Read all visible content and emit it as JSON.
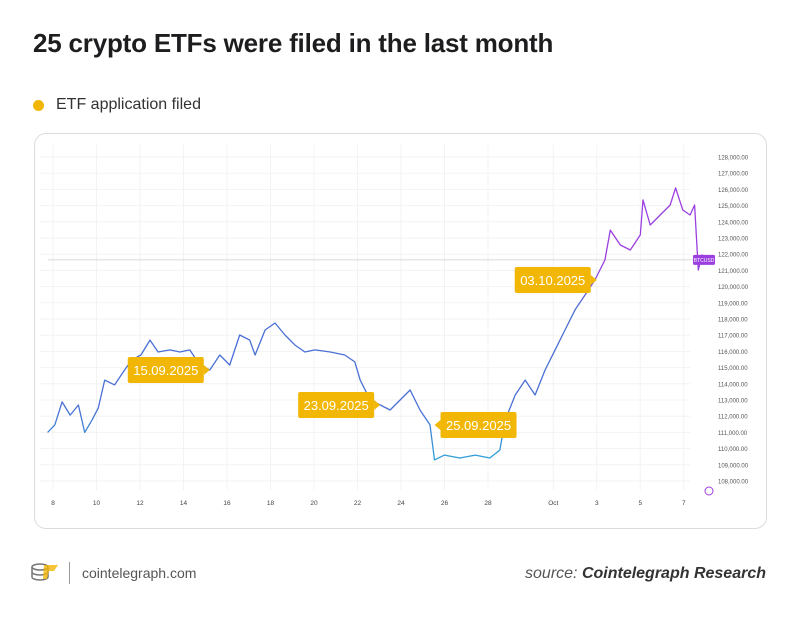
{
  "header": {
    "title": "25 crypto ETFs were filed in the last month"
  },
  "legend": {
    "label": "ETF application filed",
    "color": "#f2b705"
  },
  "footer": {
    "site": "cointelegraph.com",
    "source_prefix": "source:",
    "source_name": "Cointelegraph Research"
  },
  "chart_data": {
    "type": "line",
    "title": "25 crypto ETFs were filed in the last month",
    "symbol": "BTCUSD",
    "ylim": [
      108000,
      128000
    ],
    "y_ticks": [
      "128,000.00",
      "127,000.00",
      "126,000.00",
      "125,000.00",
      "124,000.00",
      "123,000.00",
      "122,000.00",
      "121,000.00",
      "120,000.00",
      "119,000.00",
      "118,000.00",
      "117,000.00",
      "116,000.00",
      "115,000.00",
      "114,000.00",
      "113,000.00",
      "112,000.00",
      "111,000.00",
      "110,000.00",
      "109,000.00",
      "108,000.00"
    ],
    "x_ticks": [
      {
        "label": "8",
        "date": "2025-09-08"
      },
      {
        "label": "10",
        "date": "2025-09-10"
      },
      {
        "label": "12",
        "date": "2025-09-12"
      },
      {
        "label": "14",
        "date": "2025-09-14"
      },
      {
        "label": "16",
        "date": "2025-09-16"
      },
      {
        "label": "18",
        "date": "2025-09-18"
      },
      {
        "label": "20",
        "date": "2025-09-20"
      },
      {
        "label": "22",
        "date": "2025-09-22"
      },
      {
        "label": "24",
        "date": "2025-09-24"
      },
      {
        "label": "26",
        "date": "2025-09-26"
      },
      {
        "label": "28",
        "date": "2025-09-28"
      },
      {
        "label": "Oct",
        "date": "2025-10-01"
      },
      {
        "label": "3",
        "date": "2025-10-03"
      },
      {
        "label": "5",
        "date": "2025-10-05"
      },
      {
        "label": "7",
        "date": "2025-10-07"
      }
    ],
    "grid": true,
    "current_price": 121650,
    "series": [
      {
        "points": [
          [
            "2025-09-07T18:00",
            111000
          ],
          [
            "2025-09-08T02:00",
            111460
          ],
          [
            "2025-09-08T10:00",
            112880
          ],
          [
            "2025-09-08T19:00",
            112070
          ],
          [
            "2025-09-09T04:00",
            112690
          ],
          [
            "2025-09-09T11:00",
            111000
          ],
          [
            "2025-09-09T19:00",
            111760
          ],
          [
            "2025-09-10T02:00",
            112510
          ],
          [
            "2025-09-10T09:00",
            114230
          ],
          [
            "2025-09-10T20:00",
            113930
          ],
          [
            "2025-09-11T07:00",
            114850
          ],
          [
            "2025-09-11T15:00",
            115470
          ],
          [
            "2025-09-12T01:00",
            115780
          ],
          [
            "2025-09-12T11:00",
            116700
          ],
          [
            "2025-09-12T20:00",
            115960
          ],
          [
            "2025-09-13T09:00",
            116090
          ],
          [
            "2025-09-13T20:00",
            115960
          ],
          [
            "2025-09-14T07:00",
            116090
          ],
          [
            "2025-09-14T18:00",
            115160
          ],
          [
            "2025-09-15T05:00",
            114850
          ],
          [
            "2025-09-15T16:00",
            115780
          ],
          [
            "2025-09-16T03:00",
            115160
          ],
          [
            "2025-09-16T14:00",
            117010
          ],
          [
            "2025-09-17T01:00",
            116700
          ],
          [
            "2025-09-17T07:00",
            115780
          ],
          [
            "2025-09-17T18:00",
            117320
          ],
          [
            "2025-09-18T05:00",
            117750
          ],
          [
            "2025-09-18T16:00",
            117010
          ],
          [
            "2025-09-19T03:00",
            116390
          ],
          [
            "2025-09-19T14:00",
            115960
          ],
          [
            "2025-09-20T01:00",
            116090
          ],
          [
            "2025-09-20T18:00",
            115960
          ],
          [
            "2025-09-21T10:00",
            115780
          ],
          [
            "2025-09-21T21:00",
            115350
          ],
          [
            "2025-09-22T03:00",
            114230
          ],
          [
            "2025-09-22T14:00",
            113000
          ],
          [
            "2025-09-23T01:00",
            112690
          ],
          [
            "2025-09-23T12:00",
            112380
          ],
          [
            "2025-09-23T23:00",
            113000
          ],
          [
            "2025-09-24T10:00",
            113620
          ],
          [
            "2025-09-24T21:00",
            112380
          ],
          [
            "2025-09-25T08:00",
            111460
          ],
          [
            "2025-09-25T13:00",
            109300
          ],
          [
            "2025-09-26T00:00",
            109600
          ],
          [
            "2025-09-26T17:00",
            109420
          ],
          [
            "2025-09-27T10:00",
            109600
          ],
          [
            "2025-09-28T02:00",
            109420
          ],
          [
            "2025-09-28T13:00",
            109910
          ],
          [
            "2025-09-28T19:00",
            111760
          ],
          [
            "2025-09-29T06:00",
            113310
          ],
          [
            "2025-09-29T17:00",
            114230
          ],
          [
            "2025-09-30T04:00",
            113310
          ],
          [
            "2025-09-30T15:00",
            114850
          ],
          [
            "2025-10-01T02:00",
            116090
          ],
          [
            "2025-10-01T13:00",
            117320
          ],
          [
            "2025-10-02T00:00",
            118560
          ],
          [
            "2025-10-02T11:00",
            119480
          ],
          [
            "2025-10-02T22:00",
            120410
          ],
          [
            "2025-10-03T09:00",
            121640
          ],
          [
            "2025-10-03T15:00",
            123490
          ],
          [
            "2025-10-04T02:00",
            122570
          ],
          [
            "2025-10-04T13:00",
            122260
          ],
          [
            "2025-10-05T00:00",
            123190
          ],
          [
            "2025-10-05T03:00",
            125350
          ],
          [
            "2025-10-05T11:00",
            123800
          ],
          [
            "2025-10-05T22:00",
            124420
          ],
          [
            "2025-10-06T09:00",
            125040
          ],
          [
            "2025-10-06T15:00",
            126090
          ],
          [
            "2025-10-06T23:00",
            124730
          ],
          [
            "2025-10-07T07:00",
            124420
          ],
          [
            "2025-10-07T12:00",
            125040
          ],
          [
            "2025-10-07T16:00",
            121020
          ],
          [
            "2025-10-07T20:00",
            121950
          ],
          [
            "2025-10-08T03:00",
            121760
          ]
        ]
      }
    ],
    "annotations": [
      {
        "label": "15.09.2025",
        "date": "2025-09-15T05:00",
        "price": 114850,
        "pointer": "right"
      },
      {
        "label": "23.09.2025",
        "date": "2025-09-23T01:00",
        "price": 112690,
        "pointer": "right"
      },
      {
        "label": "25.09.2025",
        "date": "2025-09-25T13:00",
        "price": 111460,
        "pointer": "left"
      },
      {
        "label": "03.10.2025",
        "date": "2025-10-03T00:00",
        "price": 120410,
        "pointer": "right"
      }
    ],
    "colors": {
      "annotation": "#f2b705",
      "line_high": "#9b3fe0",
      "line_mid": "#4a6fd6",
      "line_low": "#2aa6d8",
      "price_tag": "#9b3fe0"
    }
  }
}
